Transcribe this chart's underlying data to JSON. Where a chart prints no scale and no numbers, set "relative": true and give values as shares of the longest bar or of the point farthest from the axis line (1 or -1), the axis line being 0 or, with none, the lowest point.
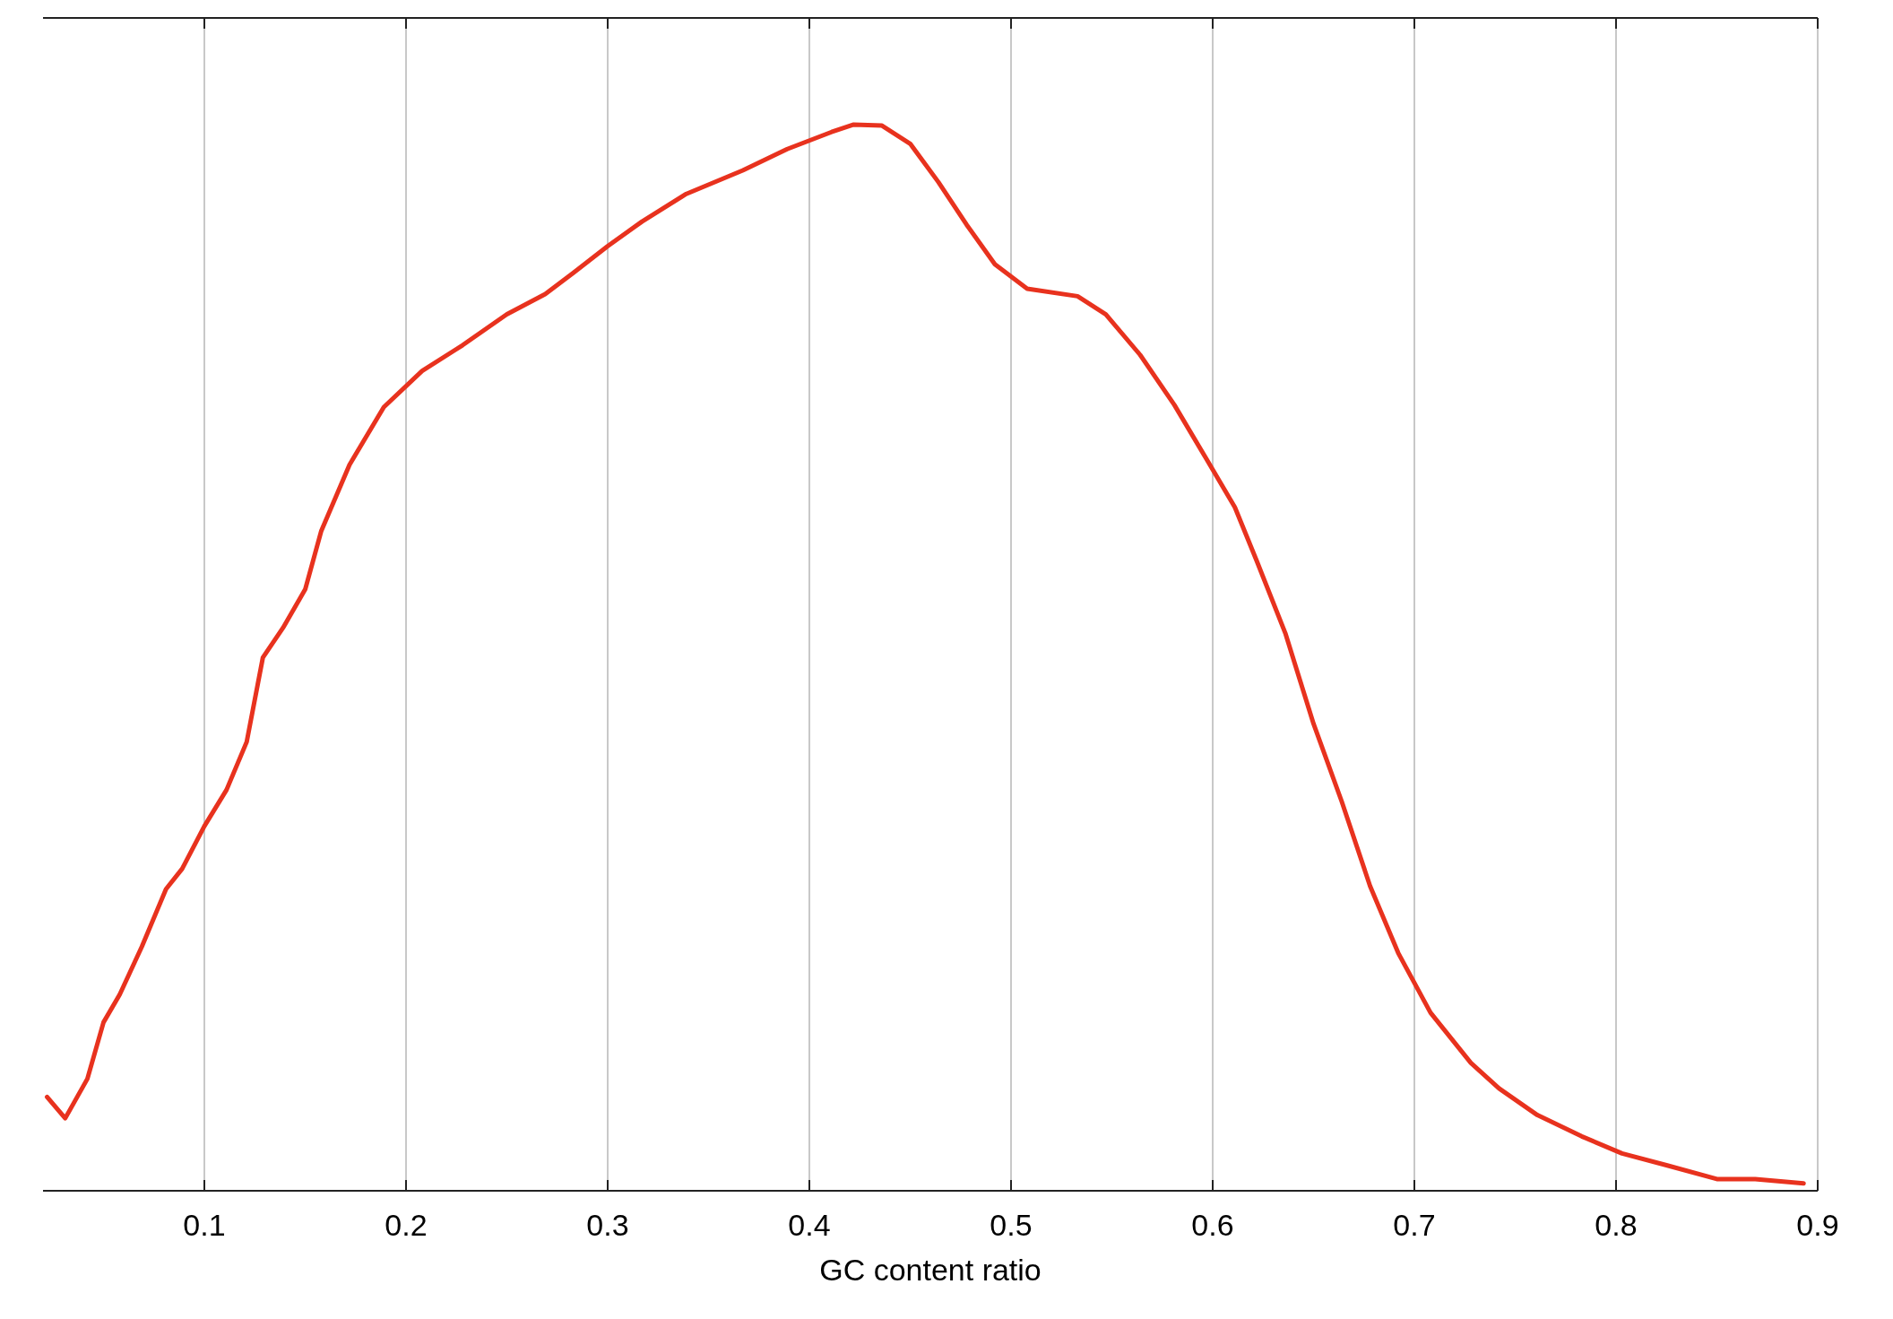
{
  "chart_data": {
    "type": "line",
    "xlabel": "GC content ratio",
    "relative": true,
    "xlim": [
      0.02,
      0.9
    ],
    "xticks": [
      0.1,
      0.2,
      0.3,
      0.4,
      0.5,
      0.6,
      0.7,
      0.8,
      0.9
    ],
    "grid": "x",
    "line_style": "solid",
    "series": [
      {
        "color": "#e8321e",
        "x": [
          0.022,
          0.031,
          0.042,
          0.05,
          0.058,
          0.069,
          0.081,
          0.089,
          0.1,
          0.111,
          0.121,
          0.129,
          0.139,
          0.15,
          0.158,
          0.172,
          0.189,
          0.208,
          0.228,
          0.25,
          0.269,
          0.283,
          0.3,
          0.317,
          0.339,
          0.367,
          0.389,
          0.411,
          0.422,
          0.436,
          0.45,
          0.464,
          0.478,
          0.492,
          0.508,
          0.533,
          0.547,
          0.564,
          0.581,
          0.597,
          0.611,
          0.622,
          0.636,
          0.65,
          0.664,
          0.678,
          0.692,
          0.708,
          0.728,
          0.742,
          0.761,
          0.783,
          0.803,
          0.825,
          0.85,
          0.869,
          0.893
        ],
        "values": [
          0.088,
          0.068,
          0.105,
          0.158,
          0.184,
          0.229,
          0.283,
          0.302,
          0.342,
          0.376,
          0.421,
          0.5,
          0.528,
          0.564,
          0.619,
          0.681,
          0.735,
          0.769,
          0.793,
          0.822,
          0.841,
          0.861,
          0.886,
          0.909,
          0.935,
          0.957,
          0.977,
          0.993,
          1,
          0.999,
          0.982,
          0.946,
          0.906,
          0.869,
          0.846,
          0.839,
          0.822,
          0.784,
          0.737,
          0.686,
          0.641,
          0.59,
          0.523,
          0.438,
          0.365,
          0.286,
          0.223,
          0.167,
          0.12,
          0.096,
          0.071,
          0.051,
          0.035,
          0.024,
          0.011,
          0.011,
          0.007
        ]
      }
    ]
  }
}
